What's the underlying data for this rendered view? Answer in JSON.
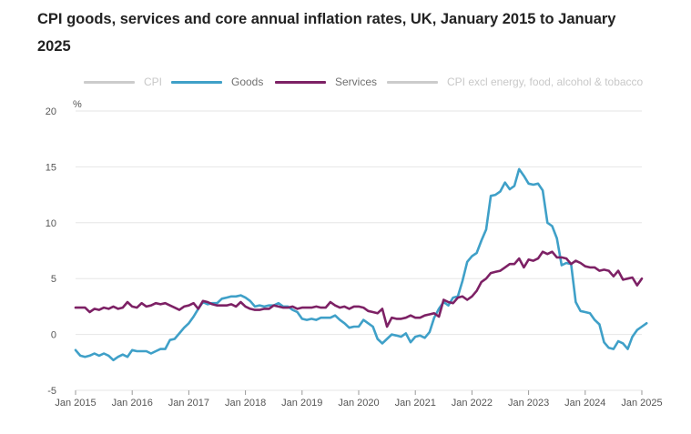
{
  "chart_data": {
    "type": "line",
    "title": "CPI goods, services and core annual inflation rates, UK, January 2015 to January 2025",
    "ylabel": "%",
    "xlabel": "",
    "ylim": [
      -5,
      20
    ],
    "yticks": [
      -5,
      0,
      5,
      10,
      15,
      20
    ],
    "xticks": [
      "Jan 2015",
      "Jan 2016",
      "Jan 2017",
      "Jan 2018",
      "Jan 2019",
      "Jan 2020",
      "Jan 2021",
      "Jan 2022",
      "Jan 2023",
      "Jan 2024",
      "Jan 2025"
    ],
    "x_start": "Jan 2015",
    "x_end": "Jan 2025",
    "frequency": "monthly",
    "legend_position": "top",
    "series": [
      {
        "name": "CPI",
        "color": "#cccccc",
        "visible": false,
        "values": []
      },
      {
        "name": "Goods",
        "color": "#3fa0c8",
        "visible": true,
        "values": [
          -1.4,
          -1.9,
          -2.0,
          -1.9,
          -1.7,
          -1.9,
          -1.7,
          -1.9,
          -2.3,
          -2.0,
          -1.8,
          -2.0,
          -1.4,
          -1.5,
          -1.5,
          -1.5,
          -1.7,
          -1.5,
          -1.3,
          -1.3,
          -0.5,
          -0.4,
          0.1,
          0.6,
          1.0,
          1.6,
          2.3,
          2.9,
          2.7,
          2.8,
          2.8,
          3.2,
          3.3,
          3.4,
          3.4,
          3.5,
          3.3,
          3.0,
          2.5,
          2.6,
          2.5,
          2.6,
          2.6,
          2.8,
          2.5,
          2.5,
          2.2,
          2.0,
          1.4,
          1.3,
          1.4,
          1.3,
          1.5,
          1.5,
          1.5,
          1.7,
          1.3,
          1.0,
          0.6,
          0.7,
          0.7,
          1.3,
          1.0,
          0.7,
          -0.4,
          -0.8,
          -0.4,
          0.0,
          -0.1,
          -0.2,
          0.1,
          -0.7,
          -0.2,
          -0.1,
          -0.3,
          0.2,
          1.5,
          2.3,
          2.9,
          2.6,
          3.3,
          3.4,
          4.8,
          6.5,
          7.0,
          7.3,
          8.4,
          9.4,
          12.4,
          12.5,
          12.8,
          13.6,
          13.0,
          13.3,
          14.8,
          14.2,
          13.5,
          13.4,
          13.5,
          12.9,
          10.0,
          9.7,
          8.6,
          6.2,
          6.4,
          6.3,
          2.9,
          2.1,
          2.0,
          1.9,
          1.3,
          0.9,
          -0.7,
          -1.2,
          -1.3,
          -0.6,
          -0.8,
          -1.3,
          -0.2,
          0.4,
          0.7,
          1.0
        ]
      },
      {
        "name": "Services",
        "color": "#7d2165",
        "visible": true,
        "values": [
          2.4,
          2.4,
          2.4,
          2.0,
          2.3,
          2.2,
          2.4,
          2.3,
          2.5,
          2.3,
          2.4,
          2.9,
          2.5,
          2.4,
          2.8,
          2.5,
          2.6,
          2.8,
          2.7,
          2.8,
          2.6,
          2.4,
          2.2,
          2.5,
          2.6,
          2.8,
          2.3,
          3.0,
          2.9,
          2.7,
          2.6,
          2.6,
          2.6,
          2.7,
          2.5,
          2.9,
          2.5,
          2.3,
          2.2,
          2.2,
          2.3,
          2.3,
          2.6,
          2.5,
          2.4,
          2.4,
          2.5,
          2.3,
          2.4,
          2.4,
          2.4,
          2.5,
          2.4,
          2.4,
          2.9,
          2.6,
          2.4,
          2.5,
          2.3,
          2.5,
          2.5,
          2.4,
          2.1,
          2.0,
          1.9,
          2.3,
          0.7,
          1.5,
          1.4,
          1.4,
          1.5,
          1.7,
          1.5,
          1.5,
          1.7,
          1.8,
          1.9,
          1.6,
          3.1,
          2.9,
          2.8,
          3.3,
          3.4,
          3.1,
          3.4,
          3.9,
          4.7,
          5.0,
          5.5,
          5.6,
          5.7,
          6.0,
          6.3,
          6.3,
          6.8,
          6.0,
          6.7,
          6.6,
          6.8,
          7.4,
          7.2,
          7.4,
          6.9,
          6.9,
          6.8,
          6.3,
          6.6,
          6.4,
          6.1,
          6.0,
          6.0,
          5.7,
          5.8,
          5.7,
          5.2,
          5.7,
          4.9,
          5.0,
          5.1,
          4.4,
          5.0
        ]
      },
      {
        "name": "CPI excl energy, food, alcohol & tobacco",
        "color": "#cccccc",
        "visible": false,
        "values": []
      }
    ]
  }
}
